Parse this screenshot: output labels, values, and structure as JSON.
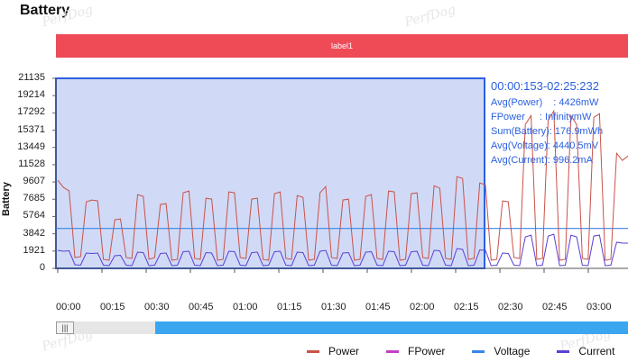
{
  "header": {
    "title": "Battery"
  },
  "label_bar": {
    "text": "label1"
  },
  "watermark": "PerfDog",
  "chart_data": {
    "type": "line",
    "ylabel": "Battery",
    "y_ticks": [
      "21135",
      "19214",
      "17292",
      "15371",
      "13449",
      "11528",
      "9607",
      "7685",
      "5764",
      "3842",
      "1921",
      "0"
    ],
    "ylim": [
      0,
      21135
    ],
    "x_ticks": [
      "00:00",
      "00:15",
      "00:30",
      "00:45",
      "01:00",
      "01:15",
      "01:30",
      "01:45",
      "02:00",
      "02:15",
      "02:30",
      "02:45",
      "03:00",
      "03"
    ],
    "series": [
      {
        "name": "Power",
        "color": "#c9524a"
      },
      {
        "name": "FPower",
        "color": "#c43fc4"
      },
      {
        "name": "Voltage",
        "color": "#3a86e8",
        "constant": 4440
      },
      {
        "name": "Current",
        "color": "#5b3fd6"
      }
    ],
    "power_values": [
      9800,
      9000,
      8600,
      1200,
      1300,
      7400,
      7600,
      7500,
      1000,
      900,
      5400,
      5500,
      1200,
      1100,
      8200,
      8000,
      1000,
      1200,
      7100,
      7200,
      900,
      1000,
      8400,
      8600,
      1100,
      1000,
      7800,
      7700,
      900,
      1000,
      8500,
      8400,
      1200,
      1100,
      7700,
      7800,
      1000,
      900,
      8300,
      8500,
      1100,
      1000,
      8100,
      7900,
      900,
      1000,
      8400,
      9100,
      1200,
      1100,
      7600,
      7700,
      900,
      1000,
      8000,
      8200,
      1100,
      1000,
      8600,
      8500,
      900,
      1000,
      8300,
      8400,
      1200,
      1100,
      9200,
      8900,
      1100,
      1000,
      10200,
      10000,
      1000,
      1100,
      9500,
      9300,
      900,
      1000,
      7500,
      7400,
      1200,
      1100,
      16000,
      17000,
      1000,
      1100,
      16500,
      17500,
      900,
      1000,
      17000,
      16000,
      1100,
      1000,
      16800,
      17200,
      900,
      1000,
      12800,
      12000,
      12500
    ],
    "current_values": [
      2000,
      1900,
      1950,
      400,
      350,
      1700,
      1650,
      1700,
      350,
      300,
      1400,
      1450,
      350,
      300,
      1800,
      1750,
      300,
      350,
      1650,
      1700,
      300,
      350,
      1850,
      1900,
      350,
      300,
      1750,
      1700,
      300,
      350,
      1900,
      1850,
      350,
      300,
      1750,
      1800,
      300,
      350,
      1850,
      1900,
      350,
      300,
      1800,
      1750,
      300,
      350,
      1900,
      2000,
      350,
      300,
      1700,
      1750,
      300,
      350,
      1800,
      1850,
      350,
      300,
      1900,
      1850,
      300,
      350,
      1850,
      1900,
      350,
      300,
      2000,
      1950,
      350,
      300,
      2200,
      2100,
      300,
      350,
      2050,
      2000,
      300,
      350,
      1700,
      1650,
      350,
      300,
      3500,
      3700,
      300,
      350,
      3600,
      3800,
      300,
      350,
      3700,
      3500,
      350,
      300,
      3600,
      3700,
      300,
      350,
      2900,
      2800,
      2800
    ]
  },
  "selection": {
    "range": "00:00:153-02:25:232",
    "avg_power_label": "Avg(Power)",
    "avg_power_value": ": 4426mW",
    "fpower_label": "FPower",
    "fpower_value": ": InfinitymW",
    "sum_battery_label": "Sum(Battery)",
    "sum_battery_value": ": 176.9mWh",
    "avg_voltage_label": "Avg(Voltage)",
    "avg_voltage_value": ": 4440.5mV",
    "avg_current_label": "Avg(Current)",
    "avg_current_value": ": 996.2mA"
  },
  "scrollbar": {
    "handle_glyph": "|||"
  },
  "legend": [
    {
      "name": "Power",
      "color": "#c9524a"
    },
    {
      "name": "FPower",
      "color": "#c43fc4"
    },
    {
      "name": "Voltage",
      "color": "#3a86e8"
    },
    {
      "name": "Current",
      "color": "#5b3fd6"
    }
  ]
}
